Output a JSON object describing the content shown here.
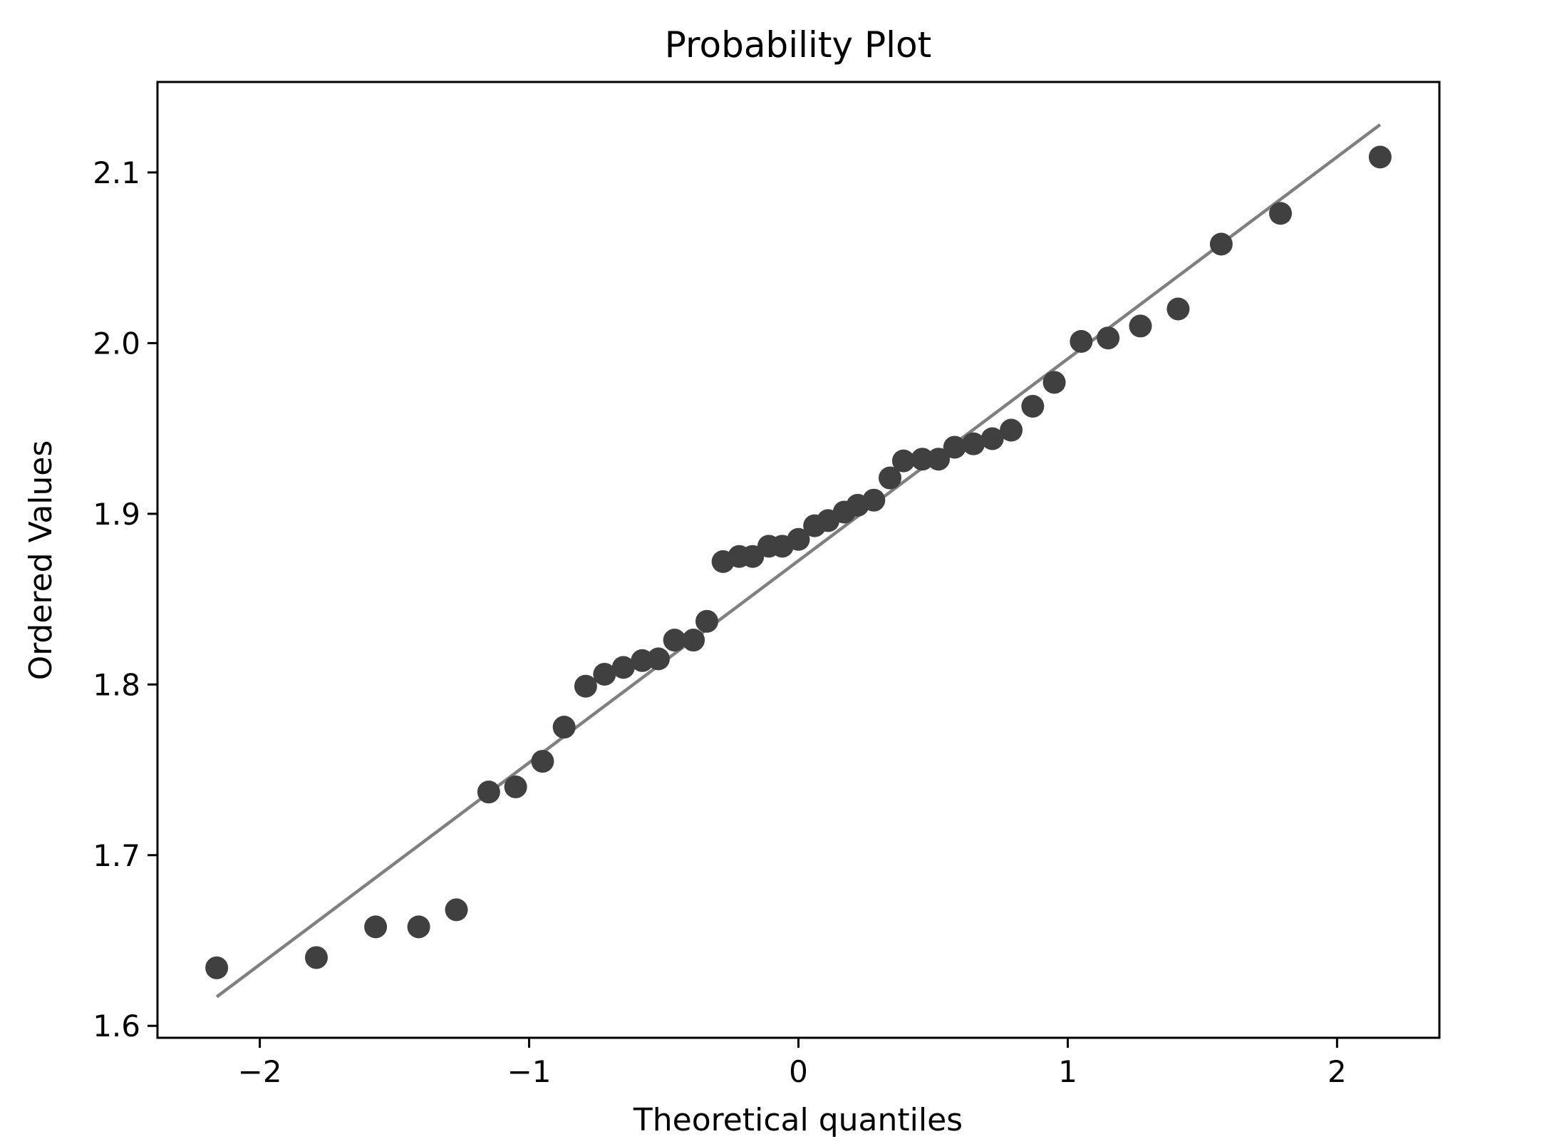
{
  "chart_data": {
    "type": "scatter",
    "title": "Probability Plot",
    "xlabel": "Theoretical quantiles",
    "ylabel": "Ordered Values",
    "xlim": [
      -2.38,
      2.38
    ],
    "ylim": [
      1.593,
      2.153
    ],
    "xticks": [
      -2,
      -1,
      0,
      1,
      2
    ],
    "xtick_labels": [
      "−2",
      "−1",
      "0",
      "1",
      "2"
    ],
    "yticks": [
      1.6,
      1.7,
      1.8,
      1.9,
      2.0,
      2.1
    ],
    "ytick_labels": [
      "1.6",
      "1.7",
      "1.8",
      "1.9",
      "2.0",
      "2.1"
    ],
    "grid": false,
    "colors": {
      "points": "#404040",
      "fit_line": "#808080",
      "frame": "#000000"
    },
    "fit_line": {
      "x": [
        -2.16,
        2.16
      ],
      "y": [
        1.617,
        2.128
      ]
    },
    "series": [
      {
        "x": [
          -2.16,
          -1.79,
          -1.57,
          -1.41,
          -1.27,
          -1.15,
          -1.05,
          -0.95,
          -0.87,
          -0.79,
          -0.72,
          -0.65,
          -0.58,
          -0.52,
          -0.46,
          -0.39,
          -0.34,
          -0.28,
          -0.22,
          -0.17,
          -0.11,
          -0.06,
          0.0,
          0.06,
          0.11,
          0.17,
          0.22,
          0.28,
          0.34,
          0.39,
          0.46,
          0.52,
          0.58,
          0.65,
          0.72,
          0.79,
          0.87,
          0.95,
          1.05,
          1.15,
          1.27,
          1.41,
          1.57,
          1.79,
          2.16
        ],
        "y": [
          1.634,
          1.64,
          1.658,
          1.658,
          1.668,
          1.737,
          1.74,
          1.755,
          1.775,
          1.799,
          1.806,
          1.81,
          1.814,
          1.815,
          1.826,
          1.826,
          1.837,
          1.872,
          1.875,
          1.875,
          1.881,
          1.881,
          1.885,
          1.893,
          1.896,
          1.901,
          1.905,
          1.908,
          1.921,
          1.931,
          1.932,
          1.932,
          1.939,
          1.941,
          1.944,
          1.949,
          1.963,
          1.977,
          2.001,
          2.003,
          2.01,
          2.02,
          2.058,
          2.076,
          2.109
        ]
      }
    ]
  }
}
